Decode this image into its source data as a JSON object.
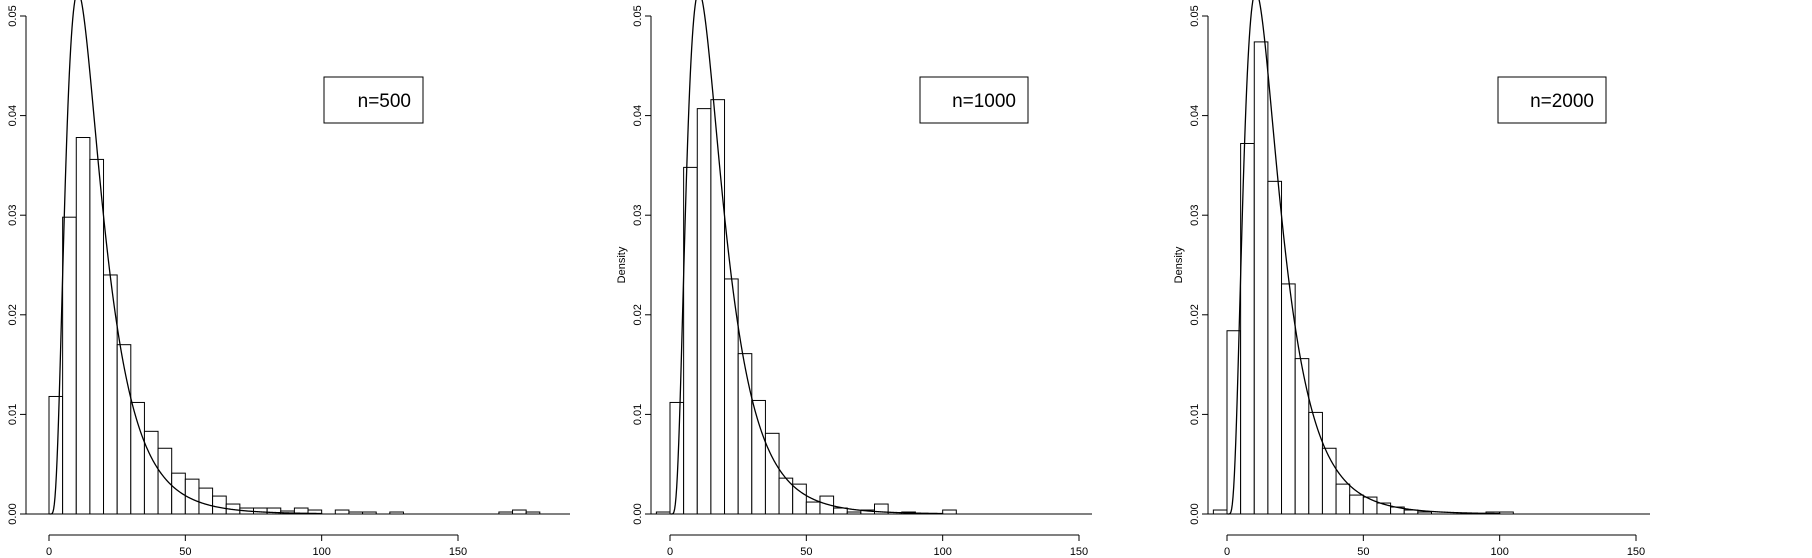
{
  "chart_data": [
    {
      "type": "bar",
      "subtype": "histogram-with-density-curve",
      "ylabel": "",
      "xlim": [
        0,
        150
      ],
      "ylim": [
        0,
        0.05
      ],
      "x_ticks": [
        "0",
        "50",
        "100",
        "150"
      ],
      "y_ticks": [
        "0.00",
        "0.01",
        "0.02",
        "0.03",
        "0.04",
        "0.05"
      ],
      "legend": "n=500",
      "legend_position": "top-right",
      "bin_width": 5,
      "bins": [
        {
          "x0": 0,
          "x1": 5,
          "y": 0.0118
        },
        {
          "x0": 5,
          "x1": 10,
          "y": 0.0298
        },
        {
          "x0": 10,
          "x1": 15,
          "y": 0.0378
        },
        {
          "x0": 15,
          "x1": 20,
          "y": 0.0356
        },
        {
          "x0": 20,
          "x1": 25,
          "y": 0.024
        },
        {
          "x0": 25,
          "x1": 30,
          "y": 0.017
        },
        {
          "x0": 30,
          "x1": 35,
          "y": 0.0112
        },
        {
          "x0": 35,
          "x1": 40,
          "y": 0.0083
        },
        {
          "x0": 40,
          "x1": 45,
          "y": 0.0066
        },
        {
          "x0": 45,
          "x1": 50,
          "y": 0.0041
        },
        {
          "x0": 50,
          "x1": 55,
          "y": 0.0035
        },
        {
          "x0": 55,
          "x1": 60,
          "y": 0.0026
        },
        {
          "x0": 60,
          "x1": 65,
          "y": 0.0018
        },
        {
          "x0": 65,
          "x1": 70,
          "y": 0.001
        },
        {
          "x0": 70,
          "x1": 75,
          "y": 0.0006
        },
        {
          "x0": 75,
          "x1": 80,
          "y": 0.0006
        },
        {
          "x0": 80,
          "x1": 85,
          "y": 0.0006
        },
        {
          "x0": 85,
          "x1": 90,
          "y": 0.0003
        },
        {
          "x0": 90,
          "x1": 95,
          "y": 0.0006
        },
        {
          "x0": 95,
          "x1": 100,
          "y": 0.0004
        },
        {
          "x0": 100,
          "x1": 105,
          "y": 0.0
        },
        {
          "x0": 105,
          "x1": 110,
          "y": 0.0004
        },
        {
          "x0": 110,
          "x1": 115,
          "y": 0.0002
        },
        {
          "x0": 115,
          "x1": 120,
          "y": 0.0002
        },
        {
          "x0": 120,
          "x1": 125,
          "y": 0.0
        },
        {
          "x0": 125,
          "x1": 130,
          "y": 0.0002
        },
        {
          "x0": 165,
          "x1": 170,
          "y": 0.0002
        },
        {
          "x0": 170,
          "x1": 175,
          "y": 0.0004
        },
        {
          "x0": 175,
          "x1": 180,
          "y": 0.0002
        }
      ],
      "density_curve": {
        "family": "lognormal",
        "meanlog": 2.72,
        "sdlog": 0.6
      }
    },
    {
      "type": "bar",
      "subtype": "histogram-with-density-curve",
      "ylabel": "Density",
      "xlim": [
        0,
        150
      ],
      "ylim": [
        0,
        0.05
      ],
      "x_ticks": [
        "0",
        "50",
        "100",
        "150"
      ],
      "y_ticks": [
        "0.00",
        "0.01",
        "0.02",
        "0.03",
        "0.04",
        "0.05"
      ],
      "legend": "n=1000",
      "legend_position": "top-right",
      "bin_width": 5,
      "bins": [
        {
          "x0": -5,
          "x1": 0,
          "y": 0.0002
        },
        {
          "x0": 0,
          "x1": 5,
          "y": 0.0112
        },
        {
          "x0": 5,
          "x1": 10,
          "y": 0.0348
        },
        {
          "x0": 10,
          "x1": 15,
          "y": 0.0407
        },
        {
          "x0": 15,
          "x1": 20,
          "y": 0.0416
        },
        {
          "x0": 20,
          "x1": 25,
          "y": 0.0236
        },
        {
          "x0": 25,
          "x1": 30,
          "y": 0.0161
        },
        {
          "x0": 30,
          "x1": 35,
          "y": 0.0114
        },
        {
          "x0": 35,
          "x1": 40,
          "y": 0.0081
        },
        {
          "x0": 40,
          "x1": 45,
          "y": 0.0036
        },
        {
          "x0": 45,
          "x1": 50,
          "y": 0.003
        },
        {
          "x0": 50,
          "x1": 55,
          "y": 0.0012
        },
        {
          "x0": 55,
          "x1": 60,
          "y": 0.0018
        },
        {
          "x0": 60,
          "x1": 65,
          "y": 0.0006
        },
        {
          "x0": 65,
          "x1": 70,
          "y": 0.0002
        },
        {
          "x0": 70,
          "x1": 75,
          "y": 0.0004
        },
        {
          "x0": 75,
          "x1": 80,
          "y": 0.001
        },
        {
          "x0": 80,
          "x1": 85,
          "y": 0.0
        },
        {
          "x0": 85,
          "x1": 90,
          "y": 0.0002
        },
        {
          "x0": 90,
          "x1": 95,
          "y": 0.0
        },
        {
          "x0": 95,
          "x1": 100,
          "y": 0.0
        },
        {
          "x0": 100,
          "x1": 105,
          "y": 0.0004
        }
      ],
      "density_curve": {
        "family": "lognormal",
        "meanlog": 2.72,
        "sdlog": 0.6
      }
    },
    {
      "type": "bar",
      "subtype": "histogram-with-density-curve",
      "ylabel": "Density",
      "xlim": [
        0,
        150
      ],
      "ylim": [
        0,
        0.05
      ],
      "x_ticks": [
        "0",
        "50",
        "100",
        "150"
      ],
      "y_ticks": [
        "0.00",
        "0.01",
        "0.02",
        "0.03",
        "0.04",
        "0.05"
      ],
      "legend": "n=2000",
      "legend_position": "top-right",
      "bin_width": 5,
      "bins": [
        {
          "x0": -5,
          "x1": 0,
          "y": 0.0004
        },
        {
          "x0": 0,
          "x1": 5,
          "y": 0.0184
        },
        {
          "x0": 5,
          "x1": 10,
          "y": 0.0372
        },
        {
          "x0": 10,
          "x1": 15,
          "y": 0.0474
        },
        {
          "x0": 15,
          "x1": 20,
          "y": 0.0334
        },
        {
          "x0": 20,
          "x1": 25,
          "y": 0.0231
        },
        {
          "x0": 25,
          "x1": 30,
          "y": 0.0156
        },
        {
          "x0": 30,
          "x1": 35,
          "y": 0.0102
        },
        {
          "x0": 35,
          "x1": 40,
          "y": 0.0066
        },
        {
          "x0": 40,
          "x1": 45,
          "y": 0.003
        },
        {
          "x0": 45,
          "x1": 50,
          "y": 0.0019
        },
        {
          "x0": 50,
          "x1": 55,
          "y": 0.0017
        },
        {
          "x0": 55,
          "x1": 60,
          "y": 0.0011
        },
        {
          "x0": 60,
          "x1": 65,
          "y": 0.0007
        },
        {
          "x0": 65,
          "x1": 70,
          "y": 0.0004
        },
        {
          "x0": 70,
          "x1": 75,
          "y": 0.0002
        },
        {
          "x0": 95,
          "x1": 100,
          "y": 0.0002
        },
        {
          "x0": 100,
          "x1": 105,
          "y": 0.0002
        }
      ],
      "density_curve": {
        "family": "lognormal",
        "meanlog": 2.72,
        "sdlog": 0.6
      }
    }
  ]
}
